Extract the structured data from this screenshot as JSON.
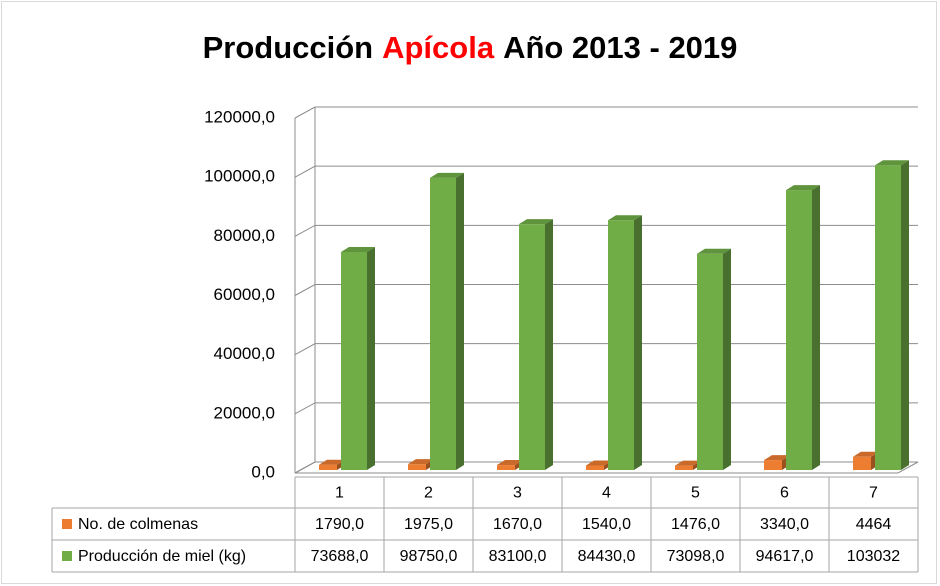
{
  "chart_data": {
    "type": "bar3d",
    "title": [
      {
        "text": "Producción",
        "color": "#000000"
      },
      {
        "text": "Apícola",
        "color": "#ff0000"
      },
      {
        "text": "Año 2013 - 2019",
        "color": "#000000"
      }
    ],
    "categories": [
      "1",
      "2",
      "3",
      "4",
      "5",
      "6",
      "7"
    ],
    "series": [
      {
        "name": "No. de colmenas",
        "color": "#ed7d31",
        "values": [
          1790,
          1975,
          1670,
          1540,
          1476,
          3340,
          4464
        ],
        "value_labels": [
          "1790,0",
          "1975,0",
          "1670,0",
          "1540,0",
          "1476,0",
          "3340,0",
          "4464"
        ]
      },
      {
        "name": "Producción de miel (kg)",
        "color": "#70ad47",
        "values": [
          73688,
          98750,
          83100,
          84430,
          73098,
          94617,
          103032
        ],
        "value_labels": [
          "73688,0",
          "98750,0",
          "83100,0",
          "84430,0",
          "73098,0",
          "94617,0",
          "103032"
        ]
      }
    ],
    "ylim": [
      0,
      120000
    ],
    "yticks": [
      {
        "value": 0,
        "label": "0,0"
      },
      {
        "value": 20000,
        "label": "20000,0"
      },
      {
        "value": 40000,
        "label": "40000,0"
      },
      {
        "value": 60000,
        "label": "60000,0"
      },
      {
        "value": 80000,
        "label": "80000,0"
      },
      {
        "value": 100000,
        "label": "100000,0"
      },
      {
        "value": 120000,
        "label": "120000,0"
      }
    ],
    "grid": true
  }
}
